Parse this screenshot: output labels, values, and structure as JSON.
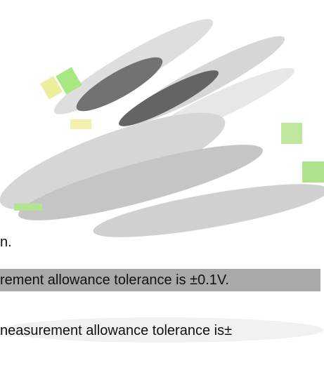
{
  "lines": [
    "n.",
    "rement allowance tolerance is ±0.1V.",
    "neasurement allowance tolerance is±"
  ]
}
